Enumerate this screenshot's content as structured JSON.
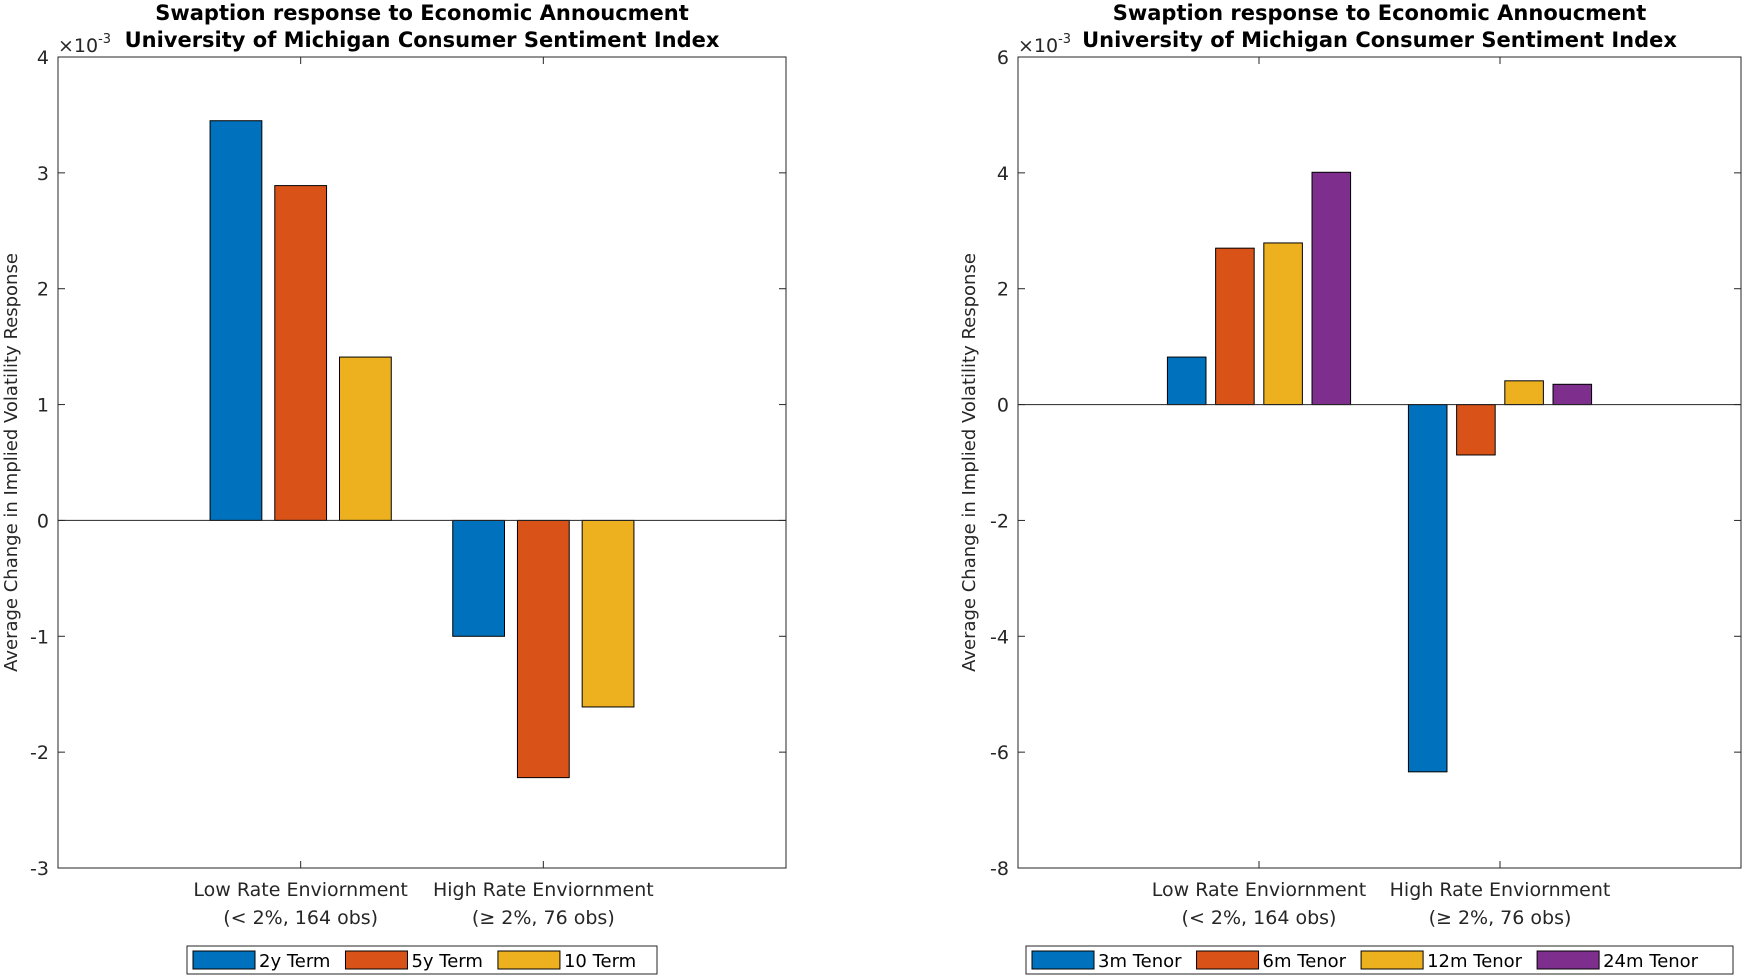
{
  "chart_data": [
    {
      "type": "bar",
      "title_line1": "Swaption response to Economic Annoucment",
      "title_line2": "University of Michigan Consumer Sentiment Index",
      "ylabel": "Average Change in Implied Volatility Response",
      "exponent_label": "×10",
      "exponent_power": "-3",
      "ylim": [
        -3,
        4
      ],
      "yticks": [
        "-3",
        "-2",
        "-1",
        "0",
        "1",
        "2",
        "3",
        "4"
      ],
      "categories": [
        {
          "line1": "Low Rate Enviornment",
          "line2": "(< 2%, 164 obs)"
        },
        {
          "line1": "High Rate Enviornment",
          "line2": "(≥ 2%, 76 obs)"
        }
      ],
      "series": [
        {
          "name": "2y Term",
          "color": "#0072BD",
          "values": [
            3.45,
            -1.0
          ]
        },
        {
          "name": "5y Term",
          "color": "#D95319",
          "values": [
            2.89,
            -2.22
          ]
        },
        {
          "name": "10 Term",
          "color": "#EDB120",
          "values": [
            1.41,
            -1.61
          ]
        }
      ],
      "legend_position": "bottom"
    },
    {
      "type": "bar",
      "title_line1": "Swaption response to Economic Annoucment",
      "title_line2": "University of Michigan Consumer Sentiment Index",
      "ylabel": "Average Change in Implied Volatility Response",
      "exponent_label": "×10",
      "exponent_power": "-3",
      "ylim": [
        -8,
        6
      ],
      "yticks": [
        "-8",
        "-6",
        "-4",
        "-2",
        "0",
        "2",
        "4",
        "6"
      ],
      "categories": [
        {
          "line1": "Low Rate Enviornment",
          "line2": "(< 2%, 164 obs)"
        },
        {
          "line1": "High Rate Enviornment",
          "line2": "(≥ 2%, 76 obs)"
        }
      ],
      "series": [
        {
          "name": "3m Tenor",
          "color": "#0072BD",
          "values": [
            0.82,
            -6.34
          ]
        },
        {
          "name": "6m Tenor",
          "color": "#D95319",
          "values": [
            2.7,
            -0.87
          ]
        },
        {
          "name": "12m Tenor",
          "color": "#EDB120",
          "values": [
            2.79,
            0.41
          ]
        },
        {
          "name": "24m Tenor",
          "color": "#7E2F8E",
          "values": [
            4.01,
            0.35
          ]
        }
      ],
      "legend_position": "bottom"
    }
  ]
}
